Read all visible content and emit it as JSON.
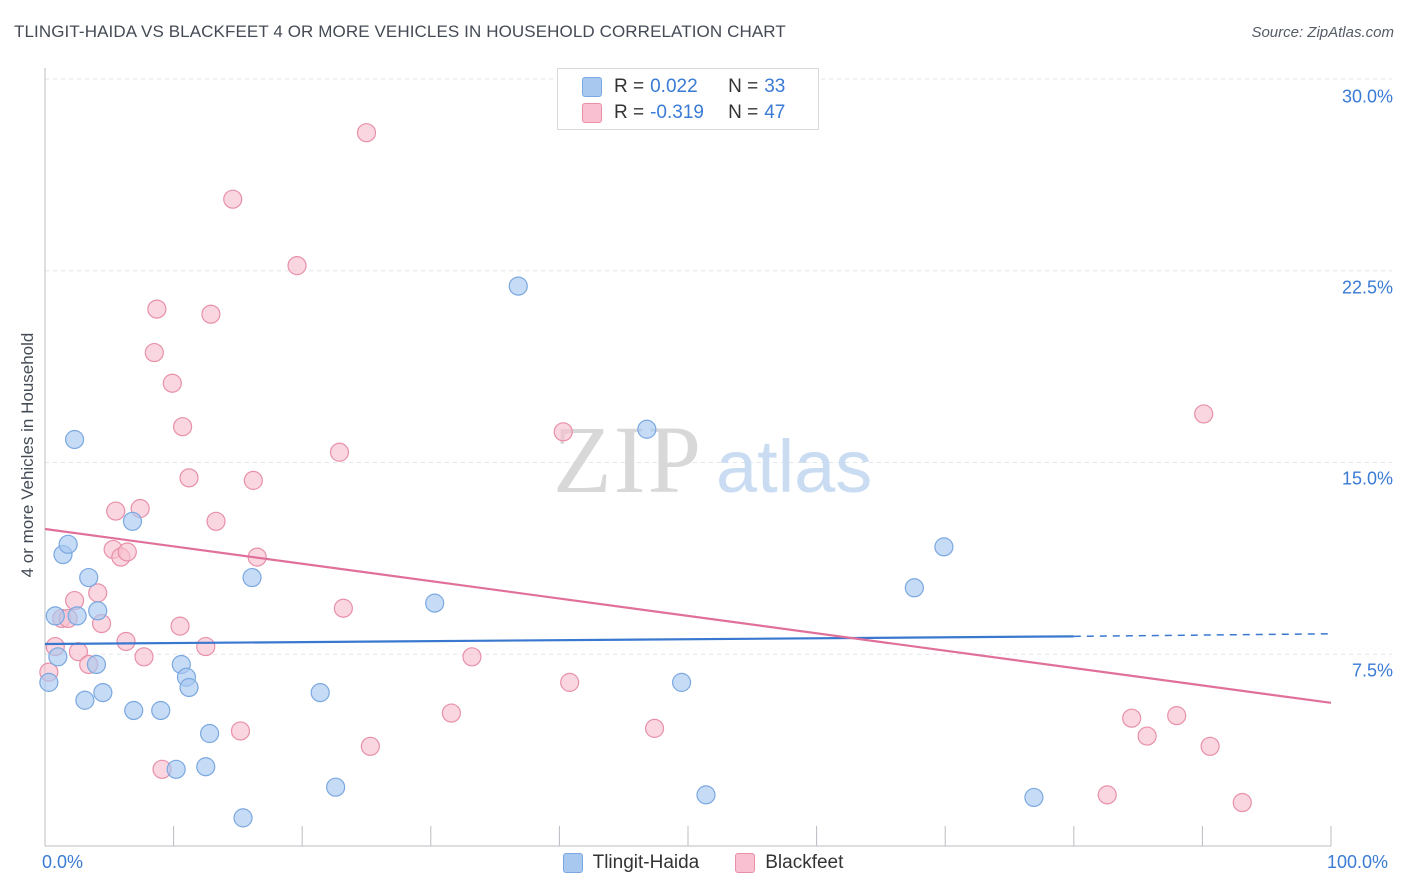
{
  "header": {
    "title": "TLINGIT-HAIDA VS BLACKFEET 4 OR MORE VEHICLES IN HOUSEHOLD CORRELATION CHART",
    "source": "Source: ZipAtlas.com"
  },
  "watermark": {
    "zip": "ZIP",
    "atlas": "atlas"
  },
  "legend_top": {
    "rows": [
      {
        "r_key": "R =",
        "r_val": "0.022",
        "n_key": "N =",
        "n_val": "33",
        "color": "#a8c8f0",
        "border": "#7aa8e0"
      },
      {
        "r_key": "R =",
        "r_val": "-0.319",
        "n_key": "N =",
        "n_val": "47",
        "color": "#f8c0d0",
        "border": "#e890a8"
      }
    ]
  },
  "chart_data": {
    "type": "scatter",
    "title": "TLINGIT-HAIDA VS BLACKFEET 4 OR MORE VEHICLES IN HOUSEHOLD CORRELATION CHART",
    "xlabel": "",
    "ylabel": "4 or more Vehicles in Household",
    "xlim": [
      0,
      100
    ],
    "ylim": [
      0,
      30
    ],
    "x_tick_labels": [
      "0.0%",
      "100.0%"
    ],
    "y_ticks": [
      7.5,
      15.0,
      22.5,
      30.0
    ],
    "y_tick_labels": [
      "7.5%",
      "15.0%",
      "22.5%",
      "30.0%"
    ],
    "grid": true,
    "legend_position": "bottom",
    "series": [
      {
        "name": "Tlingit-Haida",
        "color": "#a8c8f0",
        "stroke": "#7aa8e0",
        "line_color": "#3a78d0",
        "trend": {
          "x0": 0,
          "y0": 7.9,
          "x1": 80,
          "y1": 8.2,
          "dash_x1": 100,
          "dash_y1": 8.3
        },
        "points": [
          [
            0.3,
            6.4
          ],
          [
            0.8,
            9.0
          ],
          [
            1.0,
            7.4
          ],
          [
            1.4,
            11.4
          ],
          [
            1.8,
            11.8
          ],
          [
            2.3,
            15.9
          ],
          [
            2.5,
            9.0
          ],
          [
            3.1,
            5.7
          ],
          [
            3.4,
            10.5
          ],
          [
            4.0,
            7.1
          ],
          [
            4.1,
            9.2
          ],
          [
            4.5,
            6.0
          ],
          [
            6.8,
            12.7
          ],
          [
            6.9,
            5.3
          ],
          [
            9.0,
            5.3
          ],
          [
            10.2,
            3.0
          ],
          [
            10.6,
            7.1
          ],
          [
            11.0,
            6.6
          ],
          [
            11.2,
            6.2
          ],
          [
            12.5,
            3.1
          ],
          [
            12.8,
            4.4
          ],
          [
            15.4,
            1.1
          ],
          [
            16.1,
            10.5
          ],
          [
            21.4,
            6.0
          ],
          [
            22.6,
            2.3
          ],
          [
            30.3,
            9.5
          ],
          [
            36.8,
            21.9
          ],
          [
            46.8,
            16.3
          ],
          [
            49.5,
            6.4
          ],
          [
            51.4,
            2.0
          ],
          [
            67.6,
            10.1
          ],
          [
            69.9,
            11.7
          ],
          [
            76.9,
            1.9
          ]
        ]
      },
      {
        "name": "Blackfeet",
        "color": "#f8c0d0",
        "stroke": "#e890a8",
        "line_color": "#e0709a",
        "trend": {
          "x0": 0,
          "y0": 12.4,
          "x1": 100,
          "y1": 5.6
        },
        "points": [
          [
            0.3,
            6.8
          ],
          [
            0.8,
            7.8
          ],
          [
            1.3,
            8.9
          ],
          [
            1.8,
            8.9
          ],
          [
            2.3,
            9.6
          ],
          [
            2.6,
            7.6
          ],
          [
            3.4,
            7.1
          ],
          [
            4.1,
            9.9
          ],
          [
            4.4,
            8.7
          ],
          [
            5.3,
            11.6
          ],
          [
            5.5,
            13.1
          ],
          [
            5.9,
            11.3
          ],
          [
            6.4,
            11.5
          ],
          [
            6.3,
            8.0
          ],
          [
            7.4,
            13.2
          ],
          [
            7.7,
            7.4
          ],
          [
            8.5,
            19.3
          ],
          [
            8.7,
            21.0
          ],
          [
            9.1,
            3.0
          ],
          [
            9.9,
            18.1
          ],
          [
            10.5,
            8.6
          ],
          [
            10.7,
            16.4
          ],
          [
            11.2,
            14.4
          ],
          [
            12.5,
            7.8
          ],
          [
            12.9,
            20.8
          ],
          [
            13.3,
            12.7
          ],
          [
            14.6,
            25.3
          ],
          [
            15.2,
            4.5
          ],
          [
            16.2,
            14.3
          ],
          [
            16.5,
            11.3
          ],
          [
            19.6,
            22.7
          ],
          [
            22.9,
            15.4
          ],
          [
            23.2,
            9.3
          ],
          [
            25.0,
            27.9
          ],
          [
            25.3,
            3.9
          ],
          [
            31.6,
            5.2
          ],
          [
            33.2,
            7.4
          ],
          [
            40.3,
            16.2
          ],
          [
            40.8,
            6.4
          ],
          [
            47.4,
            4.6
          ],
          [
            82.6,
            2.0
          ],
          [
            84.5,
            5.0
          ],
          [
            85.7,
            4.3
          ],
          [
            88.0,
            5.1
          ],
          [
            90.1,
            16.9
          ],
          [
            90.6,
            3.9
          ],
          [
            93.1,
            1.7
          ]
        ]
      }
    ]
  }
}
